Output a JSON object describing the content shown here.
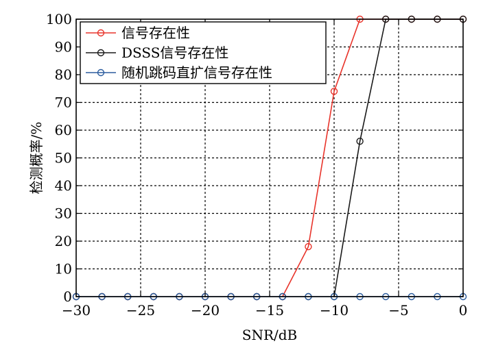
{
  "chart_data": {
    "type": "line",
    "title": "",
    "xlabel": "SNR/dB",
    "ylabel": "检测概率/%",
    "xlim": [
      -30,
      0
    ],
    "ylim": [
      0,
      100
    ],
    "x_ticks": [
      -30,
      -25,
      -20,
      -15,
      -10,
      -5,
      0
    ],
    "x_tick_labels": [
      "−30",
      "−25",
      "−20",
      "−15",
      "−10",
      "−5",
      "0"
    ],
    "y_ticks": [
      0,
      10,
      20,
      30,
      40,
      50,
      60,
      70,
      80,
      90,
      100
    ],
    "y_tick_labels": [
      "0",
      "10",
      "20",
      "30",
      "40",
      "50",
      "60",
      "70",
      "80",
      "90",
      "100"
    ],
    "grid": true,
    "legend_position": "top-left",
    "x": [
      -30,
      -28,
      -26,
      -24,
      -22,
      -20,
      -18,
      -16,
      -14,
      -12,
      -10,
      -8,
      -6,
      -4,
      -2,
      0
    ],
    "series": [
      {
        "name": "信号存在性",
        "color": "#e8332a",
        "marker": "circle",
        "values": [
          0,
          0,
          0,
          0,
          0,
          0,
          0,
          0,
          0,
          18,
          74,
          100,
          100,
          100,
          100,
          100
        ],
        "draw_from_index": 8
      },
      {
        "name": "DSSS信号存在性",
        "color": "#1a1a1a",
        "marker": "circle",
        "values": [
          0,
          0,
          0,
          0,
          0,
          0,
          0,
          0,
          0,
          0,
          0,
          56,
          100,
          100,
          100,
          100
        ],
        "draw_from_index": 10
      },
      {
        "name": "随机跳码直扩信号存在性",
        "color": "#2b5c9e",
        "marker": "circle",
        "values": [
          0,
          0,
          0,
          0,
          0,
          0,
          0,
          0,
          0,
          0,
          0,
          0,
          0,
          0,
          0,
          0
        ],
        "draw_from_index": 0
      }
    ]
  }
}
